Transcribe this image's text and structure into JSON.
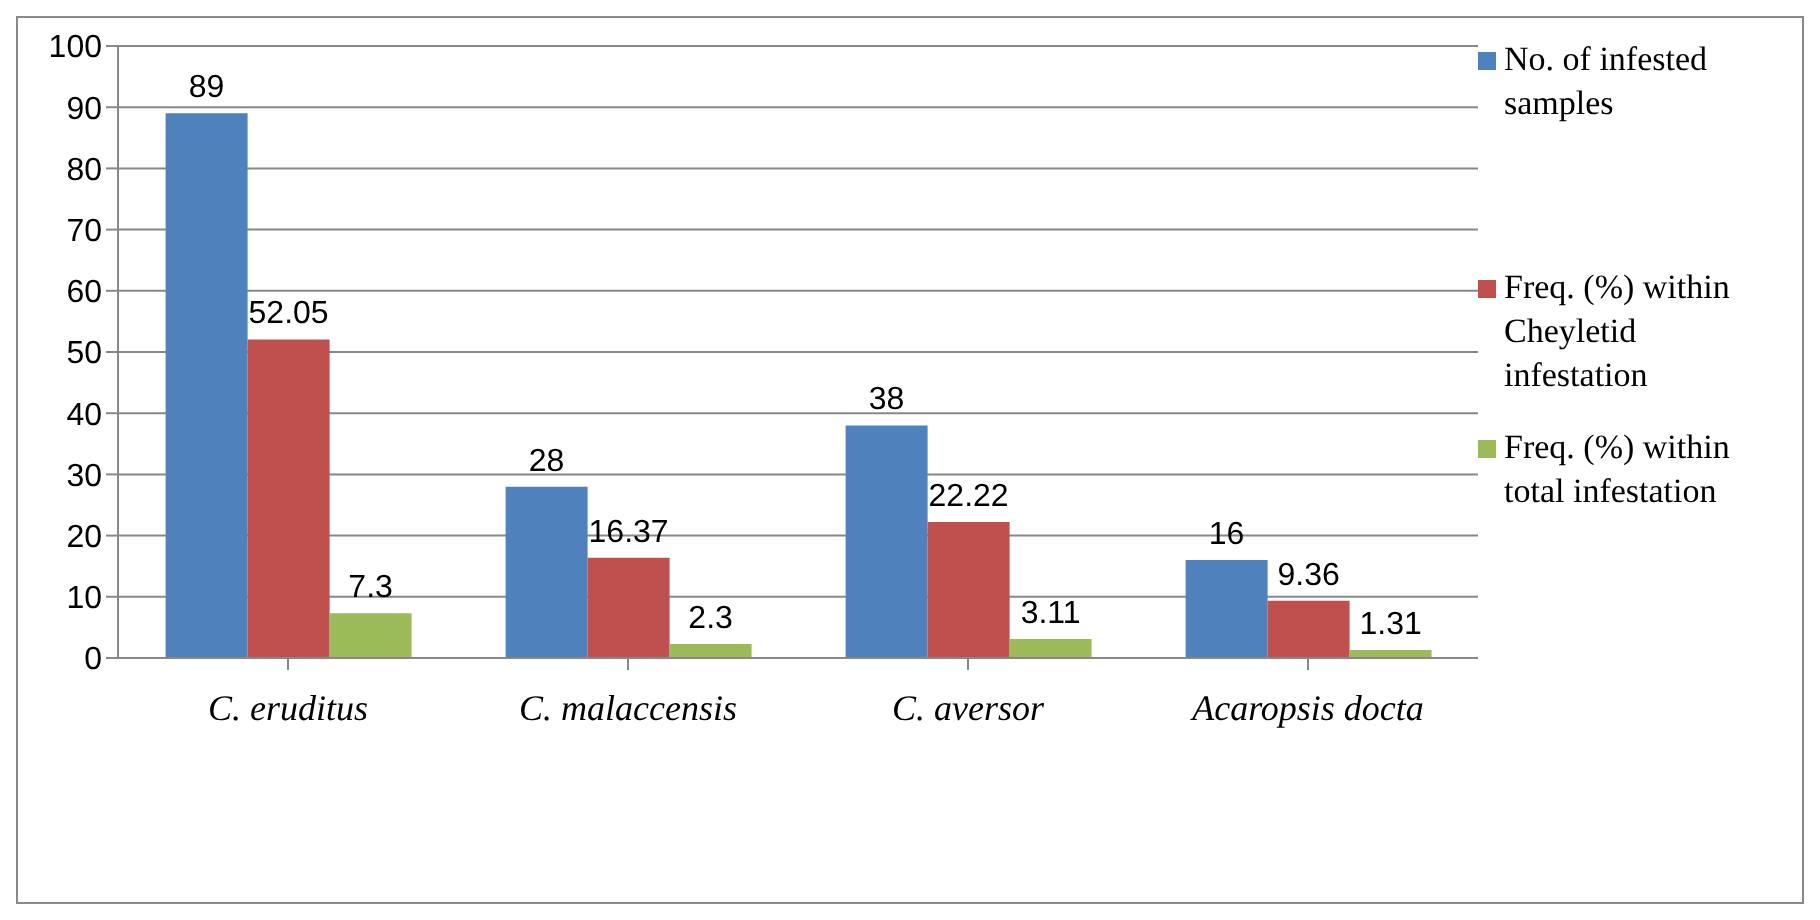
{
  "chart_data": {
    "type": "bar",
    "categories": [
      "C. eruditus",
      "C. malaccensis",
      "C. aversor",
      "Acaropsis docta"
    ],
    "series": [
      {
        "name": "No. of infested samples",
        "color": "#4f81bd",
        "values": [
          89,
          28,
          38,
          16
        ]
      },
      {
        "name": "Freq. (%) within Cheyletid infestation",
        "color": "#c0504d",
        "values": [
          52.05,
          16.37,
          22.22,
          9.36
        ]
      },
      {
        "name": "Freq. (%) within total infestation",
        "color": "#9bbb59",
        "values": [
          7.3,
          2.3,
          3.11,
          1.31
        ]
      }
    ],
    "ylim": [
      0,
      100
    ],
    "yticks": [
      0,
      10,
      20,
      30,
      40,
      50,
      60,
      70,
      80,
      90,
      100
    ],
    "grid": "y",
    "legend": "right",
    "data_labels": true
  }
}
